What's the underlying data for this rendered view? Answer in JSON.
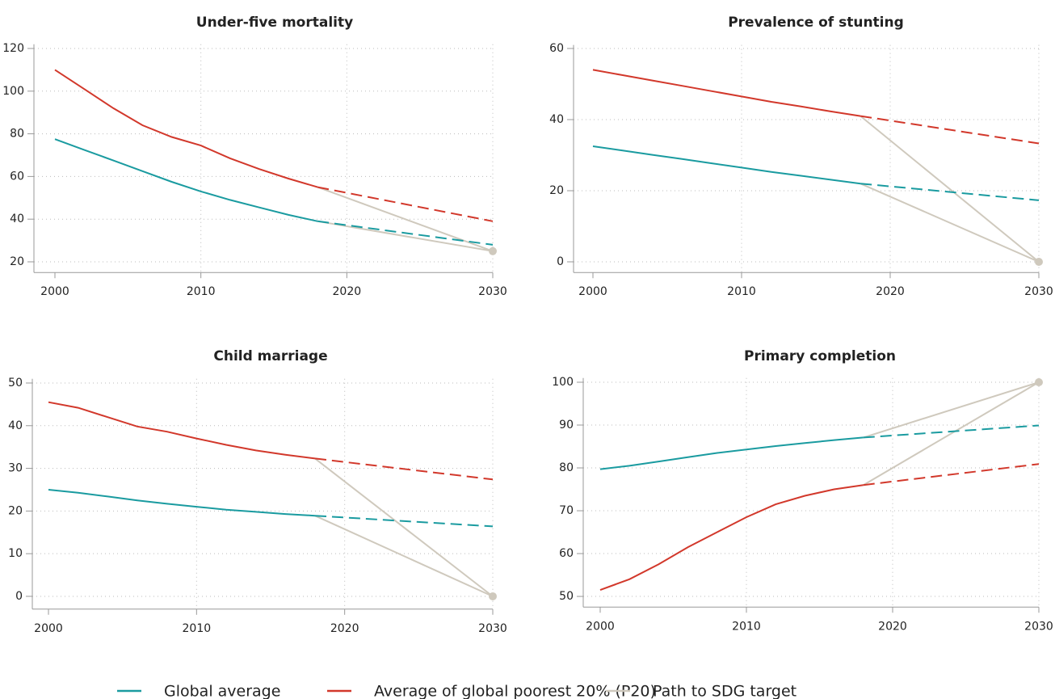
{
  "chart_data": [
    {
      "type": "line",
      "title": "Under-five mortality",
      "x": [
        2000,
        2002,
        2004,
        2006,
        2008,
        2010,
        2012,
        2014,
        2016,
        2018,
        2030
      ],
      "xlim": [
        2000,
        2030
      ],
      "xticks": [
        2000,
        2010,
        2020,
        2030
      ],
      "ylim": [
        15,
        122
      ],
      "yticks": [
        20,
        40,
        60,
        80,
        100,
        120
      ],
      "grid": true,
      "series": [
        {
          "name": "Global average",
          "color": "#1a9ba0",
          "projection_from": 2018,
          "values": [
            77.5,
            72.5,
            67.5,
            62.5,
            57.5,
            53,
            49,
            45.5,
            42,
            39,
            28
          ]
        },
        {
          "name": "Average of global poorest 20% (P20)",
          "color": "#d2382b",
          "projection_from": 2018,
          "values": [
            110,
            101,
            92,
            84,
            78.5,
            74.5,
            68.5,
            63.5,
            59,
            55,
            39
          ]
        },
        {
          "name": "Path to SDG target",
          "color": "#cfc9bd",
          "marker": true,
          "values": [
            null,
            null,
            null,
            null,
            null,
            null,
            null,
            null,
            null,
            39,
            25
          ]
        },
        {
          "color": "#cfc9bd",
          "values": [
            null,
            null,
            null,
            null,
            null,
            null,
            null,
            null,
            null,
            55,
            25
          ]
        }
      ]
    },
    {
      "type": "line",
      "title": "Prevalence of stunting",
      "x": [
        2000,
        2002,
        2004,
        2006,
        2008,
        2010,
        2012,
        2014,
        2016,
        2018,
        2030
      ],
      "xlim": [
        2000,
        2030
      ],
      "xticks": [
        2000,
        2010,
        2020,
        2030
      ],
      "ylim": [
        -3,
        61
      ],
      "yticks": [
        0,
        20,
        40,
        60
      ],
      "grid": true,
      "series": [
        {
          "color": "#1a9ba0",
          "projection_from": 2018,
          "values": [
            32.5,
            31.3,
            30.1,
            28.9,
            27.7,
            26.5,
            25.3,
            24.2,
            23.1,
            22,
            17.3
          ]
        },
        {
          "color": "#d2382b",
          "projection_from": 2018,
          "values": [
            54,
            52.5,
            51,
            49.5,
            48,
            46.5,
            45,
            43.7,
            42.3,
            41,
            33.3
          ]
        },
        {
          "color": "#cfc9bd",
          "marker": true,
          "values": [
            null,
            null,
            null,
            null,
            null,
            null,
            null,
            null,
            null,
            22,
            0
          ]
        },
        {
          "color": "#cfc9bd",
          "values": [
            null,
            null,
            null,
            null,
            null,
            null,
            null,
            null,
            null,
            41,
            0
          ]
        }
      ]
    },
    {
      "type": "line",
      "title": "Child marriage",
      "x": [
        2000,
        2002,
        2004,
        2006,
        2008,
        2010,
        2012,
        2014,
        2016,
        2018,
        2030
      ],
      "xlim": [
        2000,
        2030
      ],
      "xticks": [
        2000,
        2010,
        2020,
        2030
      ],
      "ylim": [
        -3,
        51
      ],
      "yticks": [
        0,
        10,
        20,
        30,
        40,
        50
      ],
      "grid": true,
      "series": [
        {
          "color": "#1a9ba0",
          "projection_from": 2018,
          "values": [
            25,
            24.3,
            23.4,
            22.5,
            21.7,
            21,
            20.3,
            19.8,
            19.3,
            18.9,
            16.4
          ]
        },
        {
          "color": "#d2382b",
          "projection_from": 2018,
          "values": [
            45.5,
            44.2,
            42,
            39.8,
            38.6,
            37,
            35.5,
            34.2,
            33.2,
            32.3,
            27.4
          ]
        },
        {
          "color": "#cfc9bd",
          "marker": true,
          "values": [
            null,
            null,
            null,
            null,
            null,
            null,
            null,
            null,
            null,
            18.9,
            0
          ]
        },
        {
          "color": "#cfc9bd",
          "values": [
            null,
            null,
            null,
            null,
            null,
            null,
            null,
            null,
            null,
            32.3,
            0
          ]
        }
      ]
    },
    {
      "type": "line",
      "title": "Primary completion",
      "x": [
        2000,
        2002,
        2004,
        2006,
        2008,
        2010,
        2012,
        2014,
        2016,
        2018,
        2030
      ],
      "xlim": [
        2000,
        2030
      ],
      "xticks": [
        2000,
        2010,
        2020,
        2030
      ],
      "ylim": [
        47.5,
        101
      ],
      "yticks": [
        50,
        60,
        70,
        80,
        90,
        100
      ],
      "grid": true,
      "series": [
        {
          "color": "#1a9ba0",
          "projection_from": 2018,
          "values": [
            79.7,
            80.5,
            81.5,
            82.5,
            83.5,
            84.3,
            85.1,
            85.8,
            86.5,
            87.1,
            89.9
          ]
        },
        {
          "color": "#d2382b",
          "projection_from": 2018,
          "values": [
            51.5,
            54,
            57.5,
            61.5,
            65,
            68.5,
            71.5,
            73.5,
            75,
            76,
            80.9
          ]
        },
        {
          "color": "#cfc9bd",
          "marker": true,
          "values": [
            null,
            null,
            null,
            null,
            null,
            null,
            null,
            null,
            null,
            87.1,
            100
          ]
        },
        {
          "color": "#cfc9bd",
          "values": [
            null,
            null,
            null,
            null,
            null,
            null,
            null,
            null,
            null,
            76,
            100
          ]
        }
      ]
    }
  ]
}
